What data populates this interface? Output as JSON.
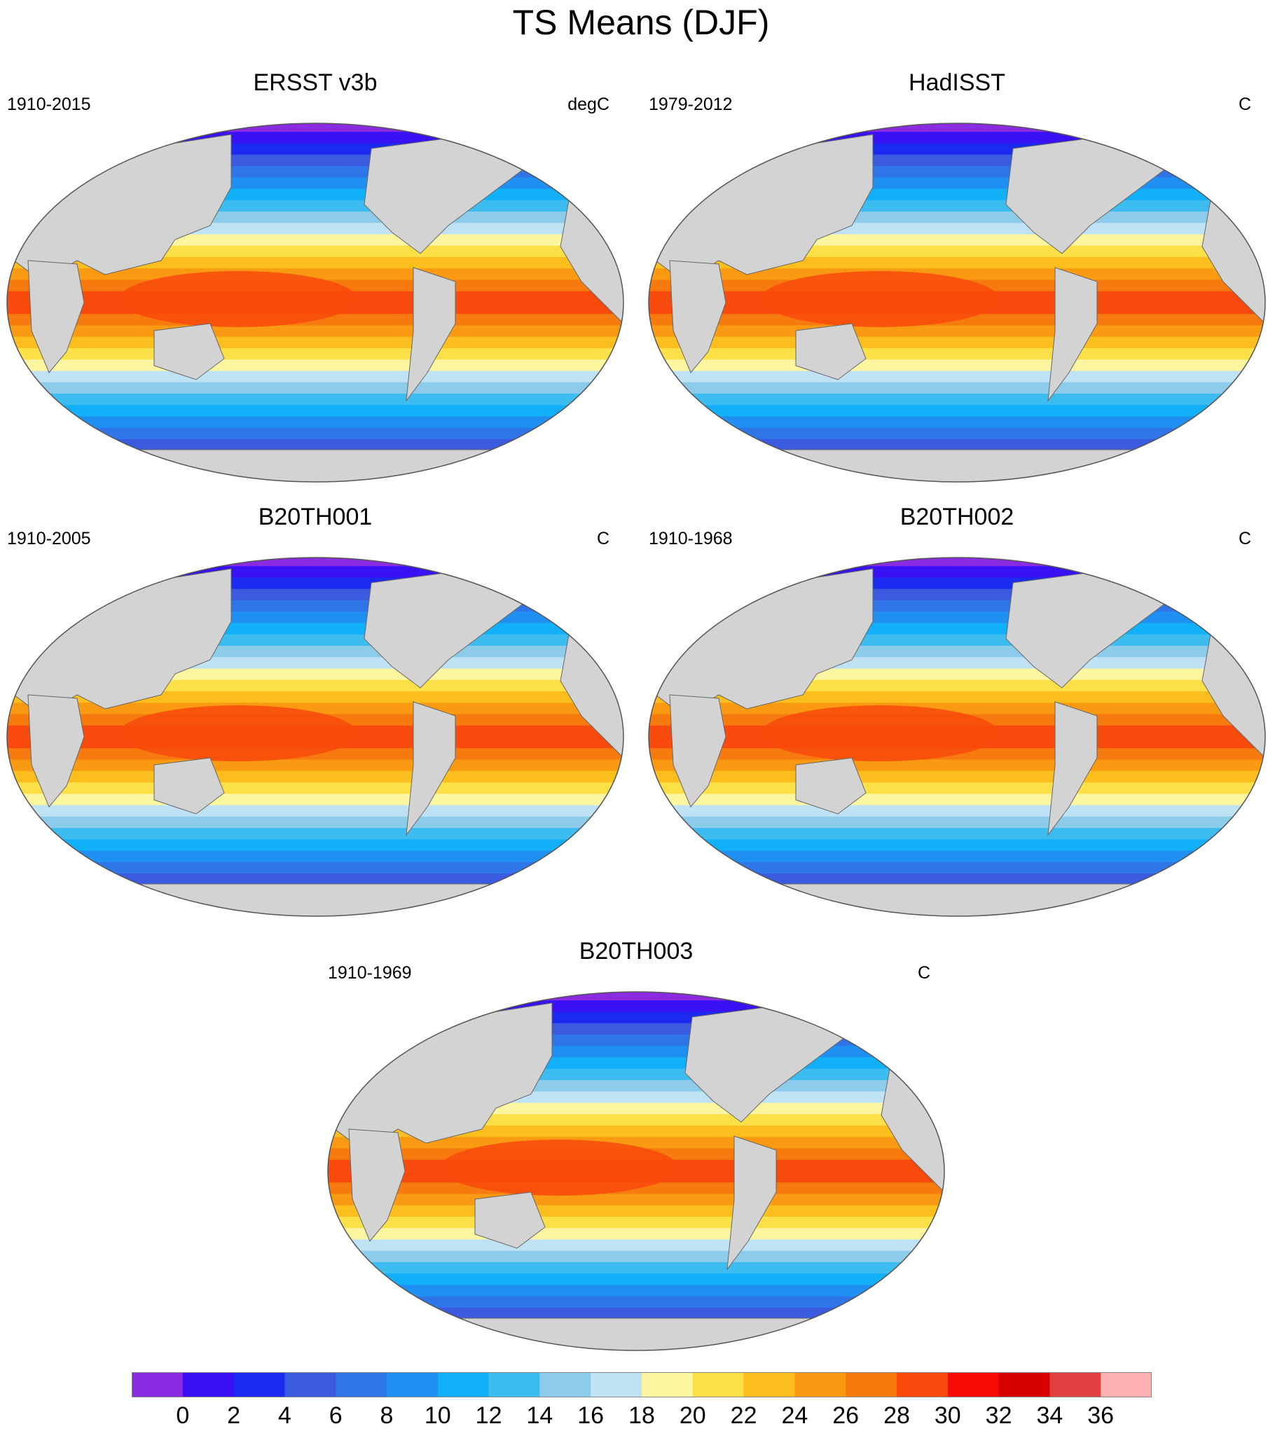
{
  "figure": {
    "title": "TS Means (DJF)"
  },
  "panels": [
    {
      "title": "ERSST v3b",
      "period": "1910-2015",
      "units": "degC"
    },
    {
      "title": "HadISST",
      "period": "1979-2012",
      "units": "C"
    },
    {
      "title": "B20TH001",
      "period": "1910-2005",
      "units": "C"
    },
    {
      "title": "B20TH002",
      "period": "1910-1968",
      "units": "C"
    },
    {
      "title": "B20TH003",
      "period": "1910-1969",
      "units": "C"
    }
  ],
  "colorbar": {
    "labels": [
      "0",
      "2",
      "4",
      "6",
      "8",
      "10",
      "12",
      "14",
      "16",
      "18",
      "20",
      "22",
      "24",
      "26",
      "28",
      "30",
      "32",
      "34",
      "36"
    ],
    "colors": [
      "#8a2be2",
      "#3a10f5",
      "#1c2af0",
      "#3a5be0",
      "#2f75e8",
      "#1f90f2",
      "#12b0f8",
      "#3dbcf0",
      "#8ccbea",
      "#bfe2f5",
      "#fdf6a0",
      "#fde048",
      "#fbbe1c",
      "#f99a12",
      "#f77a0e",
      "#f84a0c",
      "#f80a06",
      "#d60000",
      "#e04040",
      "#ffb0b0"
    ]
  },
  "colors": {
    "land": "#d3d3d3",
    "map_border": "#555555"
  }
}
